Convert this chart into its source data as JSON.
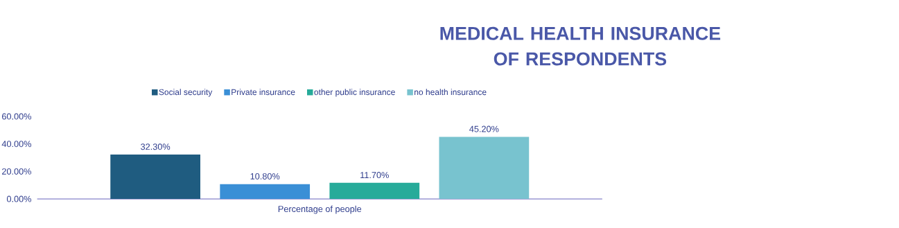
{
  "chart_data": {
    "type": "bar",
    "title": "MEDICAL HEALTH INSURANCE OF RESPONDENTS",
    "categories": [
      "Percentage of people"
    ],
    "series": [
      {
        "name": "Social security",
        "color": "#1f5c80",
        "values": [
          32.3
        ],
        "value_labels": [
          "32.30%"
        ]
      },
      {
        "name": "Private insurance",
        "color": "#3a8fd6",
        "values": [
          10.8
        ],
        "value_labels": [
          "10.80%"
        ]
      },
      {
        "name": "other public insurance",
        "color": "#27ab9a",
        "values": [
          11.7
        ],
        "value_labels": [
          "11.70%"
        ]
      },
      {
        "name": "no health insurance",
        "color": "#78c3cf",
        "values": [
          45.2
        ],
        "value_labels": [
          "45.20%"
        ]
      }
    ],
    "ylim": [
      0,
      60
    ],
    "yticks": [
      {
        "value": 0,
        "label": "0.00%"
      },
      {
        "value": 20,
        "label": "20.00%"
      },
      {
        "value": 40,
        "label": "40.00%"
      },
      {
        "value": 60,
        "label": "60.00%"
      }
    ],
    "legend": "top"
  }
}
